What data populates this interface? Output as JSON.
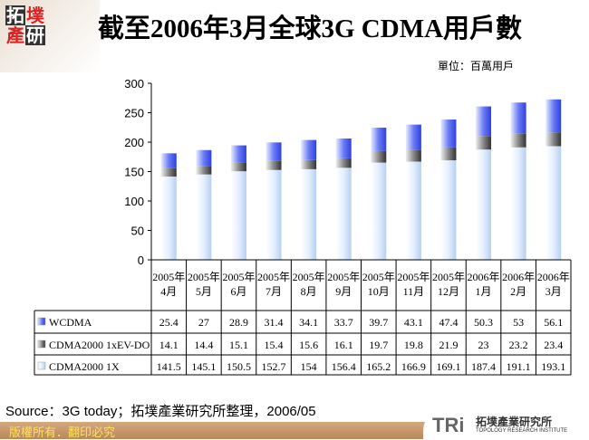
{
  "header": {
    "logo_text": "拓墣產研",
    "title": "截至2006年3月全球3G CDMA用戶數",
    "unit": "單位：百萬用戶"
  },
  "footer": {
    "source": "Source：3G today；拓墣產業研究所整理，2006/05",
    "copyright": "版權所有．翻印必究",
    "tri_logo": "TRi",
    "tri_cn": "拓墣產業研究所",
    "tri_en": "TOPOLOGY RESEARCH INSTITUTE"
  },
  "chart_data": {
    "type": "bar",
    "stacked": true,
    "grid": false,
    "legend": "table-below",
    "ylim": [
      0,
      300
    ],
    "yticks": [
      0,
      50,
      100,
      150,
      200,
      250,
      300
    ],
    "categories": [
      [
        "2005年",
        "4月"
      ],
      [
        "2005年",
        "5月"
      ],
      [
        "2005年",
        "6月"
      ],
      [
        "2005年",
        "7月"
      ],
      [
        "2005年",
        "8月"
      ],
      [
        "2005年",
        "9月"
      ],
      [
        "2005年",
        "10月"
      ],
      [
        "2005年",
        "11月"
      ],
      [
        "2005年",
        "12月"
      ],
      [
        "2006年",
        "1月"
      ],
      [
        "2006年",
        "2月"
      ],
      [
        "2006年",
        "3月"
      ]
    ],
    "series": [
      {
        "name": "CDMA2000 1X",
        "color": "#e8f2ff",
        "values": [
          141.5,
          145.1,
          150.5,
          152.7,
          154,
          156.4,
          165.2,
          166.9,
          169.1,
          187.4,
          191.1,
          193.1
        ]
      },
      {
        "name": "CDMA2000 1xEV-DO",
        "color": "#888888",
        "values": [
          14.1,
          14.4,
          15.1,
          15.4,
          15.6,
          16.1,
          19.7,
          19.8,
          21.9,
          23,
          23.2,
          23.4
        ]
      },
      {
        "name": "WCDMA",
        "color": "#5a6cf0",
        "values": [
          25.4,
          27,
          28.9,
          31.4,
          34.1,
          33.7,
          39.7,
          43.1,
          47.4,
          50.3,
          53,
          56.1
        ]
      }
    ],
    "table_row_order": [
      "WCDMA",
      "CDMA2000 1xEV-DO",
      "CDMA2000 1X"
    ],
    "table_value_labels": {
      "WCDMA": [
        "25.4",
        "27",
        "28.9",
        "31.4",
        "34.1",
        "33.7",
        "39.7",
        "43.1",
        "47.4",
        "50.3",
        "53",
        "56.1"
      ],
      "CDMA2000 1xEV-DO": [
        "14.1",
        "14.4",
        "15.1",
        "15.4",
        "15.6",
        "16.1",
        "19.7",
        "19.8",
        "21.9",
        "23",
        "23.2",
        "23.4"
      ],
      "CDMA2000 1X": [
        "141.5",
        "145.1",
        "150.5",
        "152.7",
        "154",
        "156.4",
        "165.2",
        "166.9",
        "169.1",
        "187.4",
        "191.1",
        "193.1"
      ]
    }
  }
}
